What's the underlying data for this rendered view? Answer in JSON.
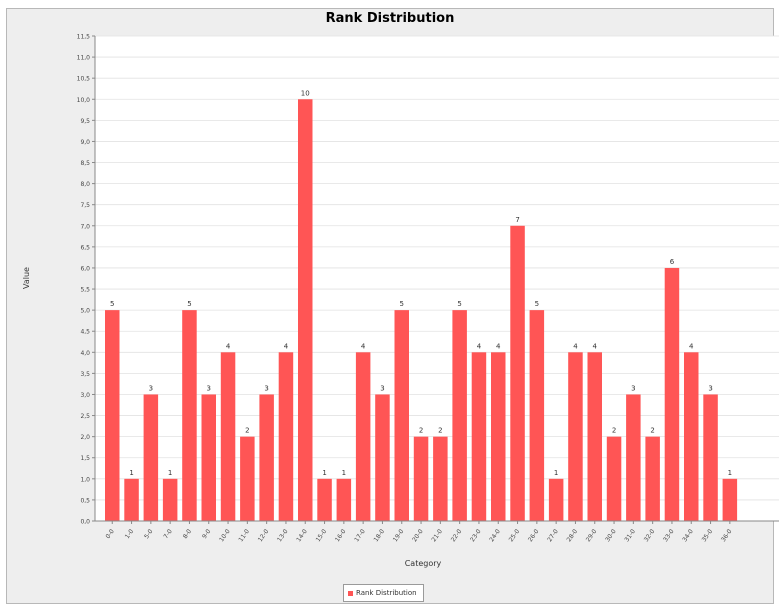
{
  "chart_data": {
    "type": "bar",
    "title": "Rank Distribution",
    "xlabel": "Category",
    "ylabel": "Value",
    "ylim": [
      0,
      11.5
    ],
    "ytick_step": 0.5,
    "grid": true,
    "legend_position": "bottom",
    "categories": [
      "0-0",
      "1-0",
      "5-0",
      "7-0",
      "8-0",
      "9-0",
      "10-0",
      "11-0",
      "12-0",
      "13-0",
      "14-0",
      "15-0",
      "16-0",
      "17-0",
      "18-0",
      "19-0",
      "20-0",
      "21-0",
      "22-0",
      "23-0",
      "24-0",
      "25-0",
      "26-0",
      "27-0",
      "28-0",
      "29-0",
      "30-0",
      "31-0",
      "32-0",
      "33-0",
      "34-0",
      "35-0",
      "36-0"
    ],
    "series": [
      {
        "name": "Rank Distribution",
        "values": [
          5,
          1,
          3,
          1,
          5,
          3,
          4,
          2,
          3,
          4,
          10,
          1,
          1,
          4,
          3,
          5,
          2,
          2,
          5,
          4,
          4,
          7,
          5,
          1,
          4,
          4,
          2,
          3,
          2,
          6,
          4,
          3,
          1
        ],
        "color": "#ff5555"
      }
    ]
  }
}
